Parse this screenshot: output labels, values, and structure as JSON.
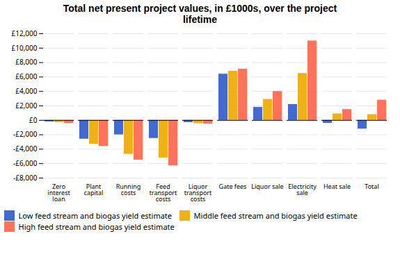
{
  "chart_data": {
    "type": "bar",
    "title": "Total net present project values, in £1000s, over the project\nlifetime",
    "categories": [
      "Zero\ninterest\nloan",
      "Plant\ncapital",
      "Running\ncosts",
      "Feed\ntransport\ncosts",
      "Liquor\ntransport\ncosts",
      "Gate fees",
      "Liquor sale",
      "Electricity\nsale",
      "Heat sale",
      "Total"
    ],
    "series": [
      {
        "name": "Low feed stream and biogas yield estimate",
        "values": [
          -200,
          -2600,
          -2000,
          -2500,
          -300,
          6400,
          1800,
          2200,
          -400,
          -1200
        ]
      },
      {
        "name": "Middle feed stream and biogas yield estimate",
        "values": [
          -300,
          -3300,
          -4700,
          -5200,
          -450,
          6800,
          2900,
          6500,
          900,
          800
        ]
      },
      {
        "name": "High feed stream and biogas yield estimate",
        "values": [
          -400,
          -3600,
          -5500,
          -6300,
          -500,
          7100,
          4000,
          11000,
          1500,
          2800
        ]
      }
    ],
    "ylim": [
      -8000,
      12000
    ],
    "yticks": [
      {
        "value": -8000,
        "label": "-£8,000"
      },
      {
        "value": -6000,
        "label": "-£6,000"
      },
      {
        "value": -4000,
        "label": "-£4,000"
      },
      {
        "value": -2000,
        "label": "-£2,000"
      },
      {
        "value": 0,
        "label": "£0"
      },
      {
        "value": 2000,
        "label": "£2,000"
      },
      {
        "value": 4000,
        "label": "£4,000"
      },
      {
        "value": 6000,
        "label": "£6,000"
      },
      {
        "value": 8000,
        "label": "£8,000"
      },
      {
        "value": 10000,
        "label": "£10,000"
      },
      {
        "value": 12000,
        "label": "£12,000"
      }
    ],
    "grid": true,
    "legend": "bottom"
  }
}
